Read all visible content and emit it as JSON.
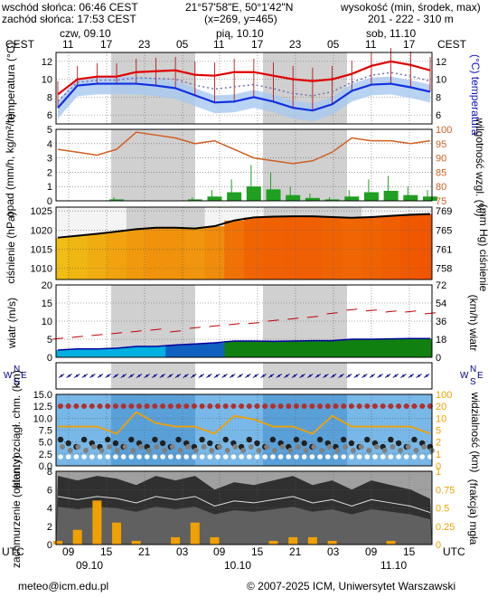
{
  "header": {
    "sunrise": "wschód słońca: 06:46 CEST",
    "sunset": "zachód słońca: 17:53 CEST",
    "coords": "21°57'58\"E, 50°1'42\"N",
    "grid": "(x=269, y=465)",
    "height_title": "wysokość (min, środek, max)",
    "height_values": "201 - 222 - 310 m",
    "tz_left": "CEST",
    "tz_right": "CEST",
    "days": [
      "czw, 09.10",
      "pią, 10.10",
      "sob, 11.10"
    ],
    "hour_labels": [
      "11",
      "17",
      "23",
      "05",
      "11",
      "17",
      "23",
      "05",
      "11",
      "17"
    ]
  },
  "footer": {
    "tz_left": "UTC",
    "tz_right": "UTC",
    "hour_labels": [
      "09",
      "15",
      "21",
      "03",
      "09",
      "15",
      "21",
      "03",
      "09",
      "15"
    ],
    "dates": [
      "09.10",
      "10.10",
      "11.10"
    ],
    "email": "meteo@icm.edu.pl",
    "copyright": "© 2007-2025 ICM, Uniwersytet Warszawski"
  },
  "colors": {
    "temp_max": "#e00000",
    "temp_mid": "#1030e0",
    "humidity": "#d06020",
    "precip": "#20a020",
    "pressure_line": "#000000",
    "wind_line": "#c00000",
    "visibility_line": "#f0a000",
    "night_band": "#d0d0d0"
  },
  "chart_data": [
    {
      "type": "line",
      "id": "temperature",
      "ylabel_left": "temperatura (°C)",
      "ylabel_right": "(°C) temperatura",
      "y_ticks": [
        6,
        8,
        10,
        12
      ],
      "ylim": [
        5,
        13
      ],
      "x_hours_utc_from": 3,
      "step_hours": 3,
      "series": [
        {
          "values": [
            8.3,
            10.0,
            10.3,
            10.3,
            10.8,
            10.9,
            11.0,
            10.5,
            10.4,
            10.8,
            10.8,
            10.4,
            10.0,
            9.8,
            10.0,
            10.6,
            11.5,
            12.0,
            11.6,
            11.0
          ]
        },
        {
          "values": [
            6.8,
            9.3,
            9.5,
            9.5,
            9.5,
            9.3,
            9.0,
            8.2,
            7.4,
            7.5,
            8.0,
            7.5,
            6.8,
            6.5,
            7.2,
            8.7,
            9.4,
            9.5,
            9.1,
            8.6
          ]
        }
      ]
    },
    {
      "type": "bar",
      "id": "precip_humidity",
      "ylabel_left": "opad (mm/h, kg/m²/h)",
      "ylabel_right": "wilgotność wzgl. (%)",
      "y_ticks_left": [
        0,
        1,
        2,
        3,
        4,
        5
      ],
      "y_ticks_right": [
        75,
        80,
        85,
        90,
        95,
        100
      ],
      "precip": [
        0,
        0,
        0,
        0.1,
        0,
        0,
        0,
        0.1,
        0.3,
        0.6,
        1.0,
        0.8,
        0.4,
        0.2,
        0.1,
        0.3,
        0.6,
        0.7,
        0.4,
        0.3
      ],
      "humidity": [
        93,
        92,
        91,
        93,
        99,
        98,
        97,
        95,
        96,
        93,
        90,
        89,
        88,
        89,
        92,
        97,
        96,
        96,
        95,
        96
      ]
    },
    {
      "type": "area",
      "id": "pressure",
      "ylabel_left": "ciśnienie (hPa)",
      "ylabel_right": "(mm Hg) ciśnienie",
      "y_ticks_left": [
        1010,
        1015,
        1020,
        1025
      ],
      "y_ticks_right": [
        758,
        761,
        765,
        769
      ],
      "ylim": [
        1007,
        1026
      ],
      "values": [
        1018.0,
        1018.5,
        1019.0,
        1019.6,
        1020.2,
        1020.6,
        1020.6,
        1020.4,
        1021.0,
        1022.5,
        1023.3,
        1023.5,
        1023.6,
        1023.6,
        1023.4,
        1023.2,
        1023.4,
        1023.7,
        1024.0,
        1024.2
      ]
    },
    {
      "type": "line",
      "id": "wind",
      "ylabel_left": "wiatr (m/s)",
      "ylabel_right": "(km/h) wiatr",
      "y_ticks_left": [
        0,
        5,
        10,
        15,
        20
      ],
      "y_ticks_right": [
        0,
        18,
        36,
        54,
        72
      ],
      "ylim": [
        0,
        20
      ],
      "gusts": [
        5.0,
        5.5,
        6.0,
        6.5,
        7.0,
        7.5,
        7.0,
        8.0,
        8.5,
        9.0,
        9.3,
        10.0,
        10.5,
        11.0,
        12.0,
        13.0,
        12.8,
        12.5,
        12.5,
        12.0
      ],
      "mean": [
        2.0,
        2.3,
        2.3,
        2.5,
        3.0,
        3.0,
        3.4,
        3.7,
        4.0,
        4.5,
        4.5,
        4.4,
        4.5,
        4.6,
        4.6,
        5.0,
        5.0,
        5.1,
        5.2,
        5.2
      ]
    },
    {
      "type": "scatter",
      "id": "wind_direction",
      "compass": [
        "N",
        "S",
        "W",
        "E"
      ]
    },
    {
      "type": "line",
      "id": "clouds_visibility",
      "ylabel_left": "pion. rozciągł. chm. (km)",
      "ylabel_right": "widzialność (km)",
      "y_ticks_left": [
        0,
        2.5,
        5,
        7.5,
        10,
        12.5,
        15
      ],
      "y_ticks_right": [
        0,
        1,
        2,
        5,
        10,
        20,
        100
      ],
      "visibility_fraction": [
        0.55,
        0.55,
        0.55,
        0.45,
        0.75,
        0.6,
        0.55,
        0.55,
        0.45,
        0.7,
        0.65,
        0.55,
        0.55,
        0.45,
        0.7,
        0.55,
        0.55,
        0.55,
        0.55,
        0.45
      ]
    },
    {
      "type": "area",
      "id": "cloud_cover_fog",
      "ylabel_left": "zachmurzenie (oktanty)",
      "ylabel_right": "(frakcja) mgła",
      "y_ticks_left": [
        0,
        2,
        4,
        6,
        8
      ],
      "y_ticks_right": [
        0,
        0.25,
        0.5,
        0.75,
        1
      ],
      "cover_total": [
        7.5,
        7.0,
        7.5,
        7.2,
        6.5,
        7.5,
        7.0,
        7.5,
        6.0,
        6.8,
        6.5,
        7.0,
        7.5,
        6.5,
        7.0,
        6.0,
        7.0,
        6.5,
        6.0,
        5.0
      ],
      "fog": [
        0.05,
        0.2,
        0.6,
        0.3,
        0.05,
        0.0,
        0.1,
        0.3,
        0.1,
        0.0,
        0.0,
        0.05,
        0.1,
        0.1,
        0.05,
        0.0,
        0.0,
        0.05,
        0.0,
        0.0
      ]
    }
  ]
}
